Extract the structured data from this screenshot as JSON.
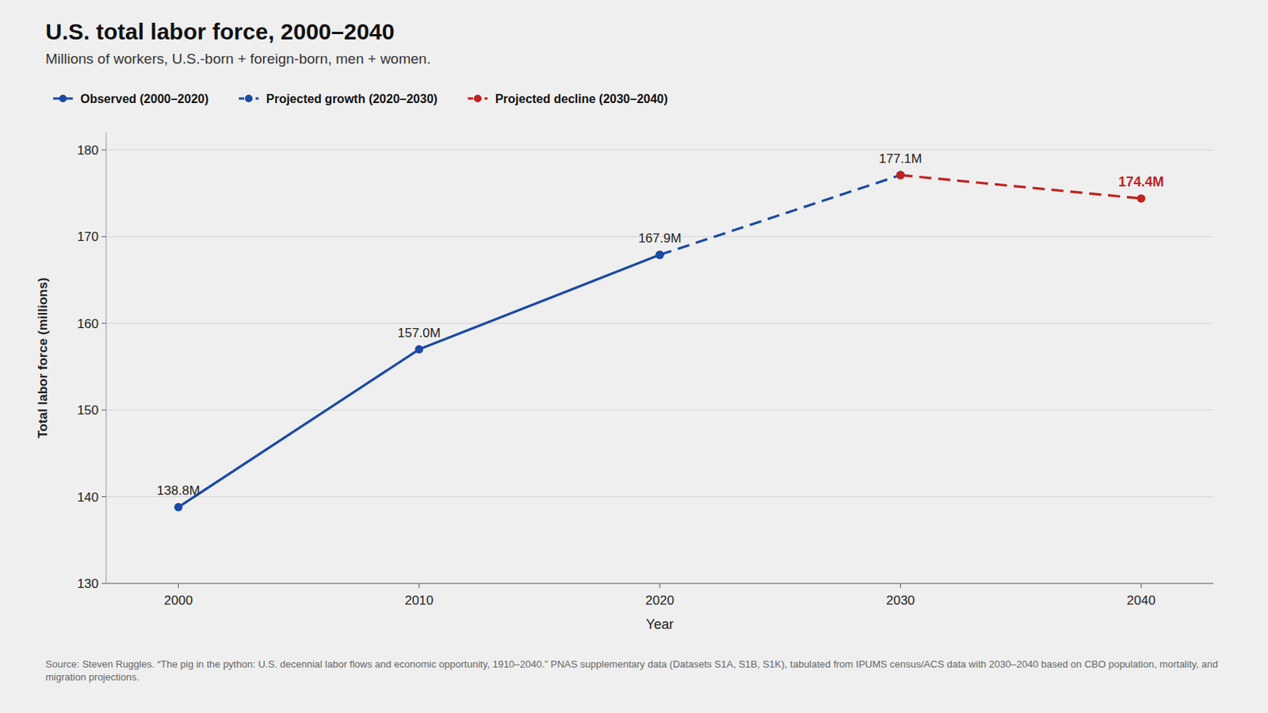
{
  "chart_data": {
    "type": "line",
    "title": "U.S. total labor force, 2000–2040",
    "subtitle": "Millions of workers, U.S.-born + foreign-born, men + women.",
    "x_label": "Year",
    "y_label": "Total labor force (millions)",
    "source": "Source: Steven Ruggles. “The pig in the python: U.S. decennial labor flows and economic opportunity, 1910–2040.” PNAS supplementary data (Datasets S1A, S1B, S1K), tabulated from IPUMS census/ACS data with 2030–2040 based on CBO population, mortality, and migration projections.",
    "x": [
      2000,
      2010,
      2020,
      2030,
      2040
    ],
    "xlim": [
      1997,
      2043
    ],
    "xticks": [
      2000,
      2010,
      2020,
      2030,
      2040
    ],
    "ylim": [
      130,
      182
    ],
    "yticks": [
      130,
      140,
      150,
      160,
      170,
      180
    ],
    "grid": true,
    "legend": "top",
    "data_labels": true,
    "series": [
      {
        "name": "Observed (2000–2020)",
        "color": "#1a4aa6",
        "line_style": "solid",
        "marker": "circle",
        "values": [
          138.8,
          157.0,
          167.9,
          null,
          null
        ],
        "value_labels": [
          "138.8M",
          "157.0M",
          "167.9M",
          null,
          null
        ]
      },
      {
        "name": "Projected growth (2020–2030)",
        "color": "#1a4aa6",
        "line_style": "dashed",
        "marker": "circle",
        "values": [
          null,
          null,
          167.9,
          177.1,
          null
        ],
        "value_labels": [
          null,
          null,
          null,
          "177.1M",
          null
        ]
      },
      {
        "name": "Projected decline (2030–2040)",
        "color": "#c0221f",
        "line_style": "dashed",
        "marker": "circle",
        "values": [
          null,
          null,
          null,
          177.1,
          174.4
        ],
        "value_labels": [
          null,
          null,
          null,
          null,
          "174.4M"
        ]
      }
    ]
  }
}
